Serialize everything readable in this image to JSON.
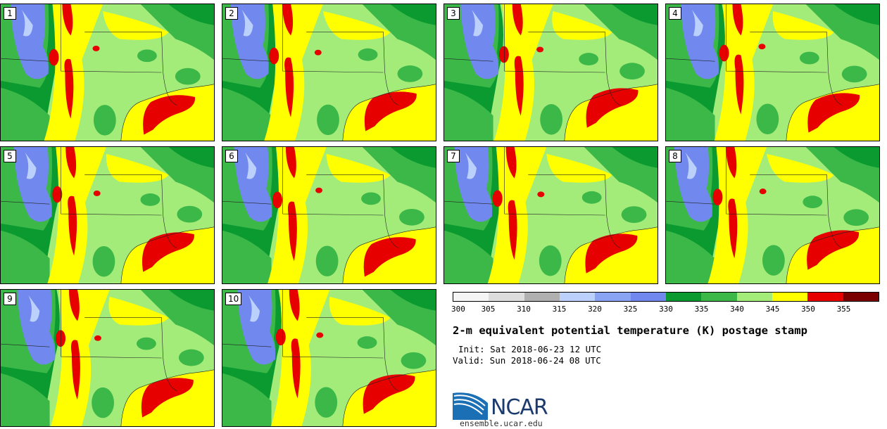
{
  "figure": {
    "title": "2-m equivalent potential temperature (K) postage stamp",
    "init": "Init: Sat 2018-06-23 12 UTC",
    "valid": "Valid: Sun 2018-06-24 08 UTC",
    "website": "ensemble.ucar.edu",
    "logo_text": "NCAR"
  },
  "members": [
    "1",
    "2",
    "3",
    "4",
    "5",
    "6",
    "7",
    "8",
    "9",
    "10"
  ],
  "colorbar": {
    "ticks": [
      "300",
      "305",
      "310",
      "315",
      "320",
      "325",
      "330",
      "335",
      "340",
      "345",
      "350",
      "355"
    ],
    "colors": [
      "#f5f5f5",
      "#dddddd",
      "#b0b0b0",
      "#bcd0fc",
      "#8aa4f4",
      "#7189ee",
      "#0b9a30",
      "#3cb848",
      "#a4ec7a",
      "#ffff00",
      "#e60000",
      "#7a0000"
    ]
  },
  "map_colors": {
    "background": "#a4ec7a",
    "warm": "#ffff00",
    "hot": "#e60000",
    "mid_green": "#3cb848",
    "dark_green": "#0b9a30",
    "cool_blue": "#7189ee",
    "light_blue": "#bcd0fc"
  }
}
